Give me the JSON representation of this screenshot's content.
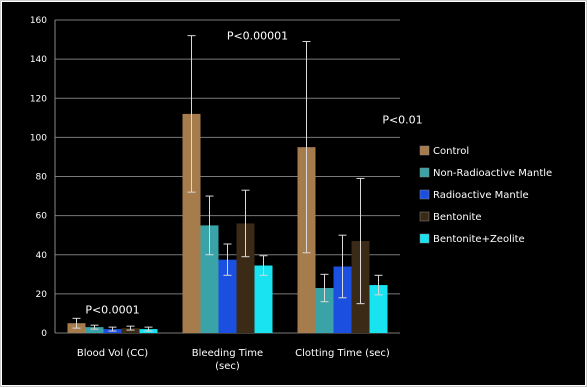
{
  "chart_data": {
    "type": "bar",
    "title": "",
    "xlabel": "",
    "ylabel": "",
    "ylim": [
      0,
      160
    ],
    "yticks": [
      0,
      20,
      40,
      60,
      80,
      100,
      120,
      140,
      160
    ],
    "grid": "horizontal",
    "legend_position": "right",
    "background": "#000000",
    "categories": [
      "Blood Vol (CC)",
      "Bleeding Time\n(sec)",
      "Clotting Time (sec)"
    ],
    "series": [
      {
        "name": "Control",
        "color": "#a77c4c",
        "values": [
          5,
          112,
          95
        ],
        "error": [
          2.5,
          40,
          54
        ]
      },
      {
        "name": "Non-Radioactive Mantle",
        "color": "#3aa3a8",
        "values": [
          3,
          55,
          23
        ],
        "error": [
          1,
          15,
          7
        ]
      },
      {
        "name": "Radioactive Mantle",
        "color": "#1a4fe0",
        "values": [
          2,
          37.5,
          34
        ],
        "error": [
          1,
          8,
          16
        ]
      },
      {
        "name": "Bentonite",
        "color": "#3b2a15",
        "values": [
          2.5,
          56,
          47
        ],
        "error": [
          1,
          17,
          32
        ]
      },
      {
        "name": "Bentonite+Zeolite",
        "color": "#19e3f0",
        "values": [
          2,
          34.5,
          24.5
        ],
        "error": [
          1,
          5,
          5
        ]
      }
    ],
    "annotations": [
      {
        "text": "P<0.0001",
        "category": 0,
        "y": 10
      },
      {
        "text": "P<0.00001",
        "category": 1,
        "y": 150
      },
      {
        "text": "P<0.01",
        "category": 2,
        "y": 107
      }
    ]
  }
}
